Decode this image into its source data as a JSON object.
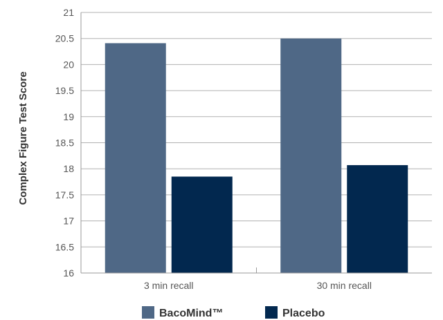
{
  "chart_data": {
    "type": "bar",
    "title": "",
    "xlabel": "",
    "ylabel": "Complex Figure Test Score",
    "categories": [
      "3 min recall",
      "30 min recall"
    ],
    "series": [
      {
        "name": "BacoMind™",
        "values": [
          20.41,
          20.5
        ],
        "color": "#4f6886"
      },
      {
        "name": "Placebo",
        "values": [
          17.85,
          18.07
        ],
        "color": "#02284f"
      }
    ],
    "ylim": [
      16,
      21
    ],
    "yticks": [
      "16",
      "16.5",
      "17",
      "17.5",
      "18",
      "18.5",
      "19",
      "19.5",
      "20",
      "20.5",
      "21"
    ],
    "grid": true,
    "legend": "bottom"
  }
}
